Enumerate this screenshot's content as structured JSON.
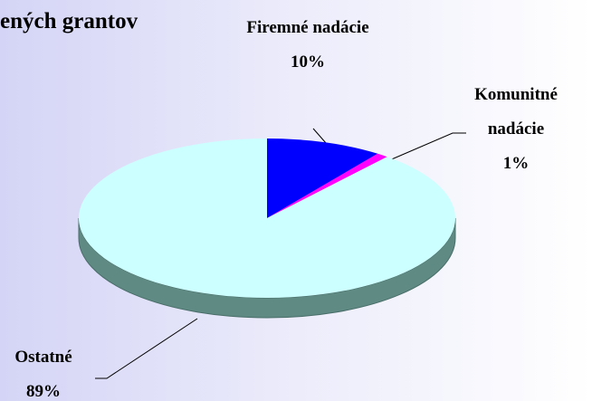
{
  "chart_data": {
    "type": "pie",
    "title": "ených grantov",
    "categories": [
      "Firemné nadácie",
      "Komunitné nadácie",
      "Ostatné"
    ],
    "values": [
      10,
      1,
      89
    ],
    "value_labels": [
      "10%",
      "1%",
      "89%"
    ],
    "colors": [
      "#0000ff",
      "#ff00ff",
      "#ccffff"
    ]
  }
}
